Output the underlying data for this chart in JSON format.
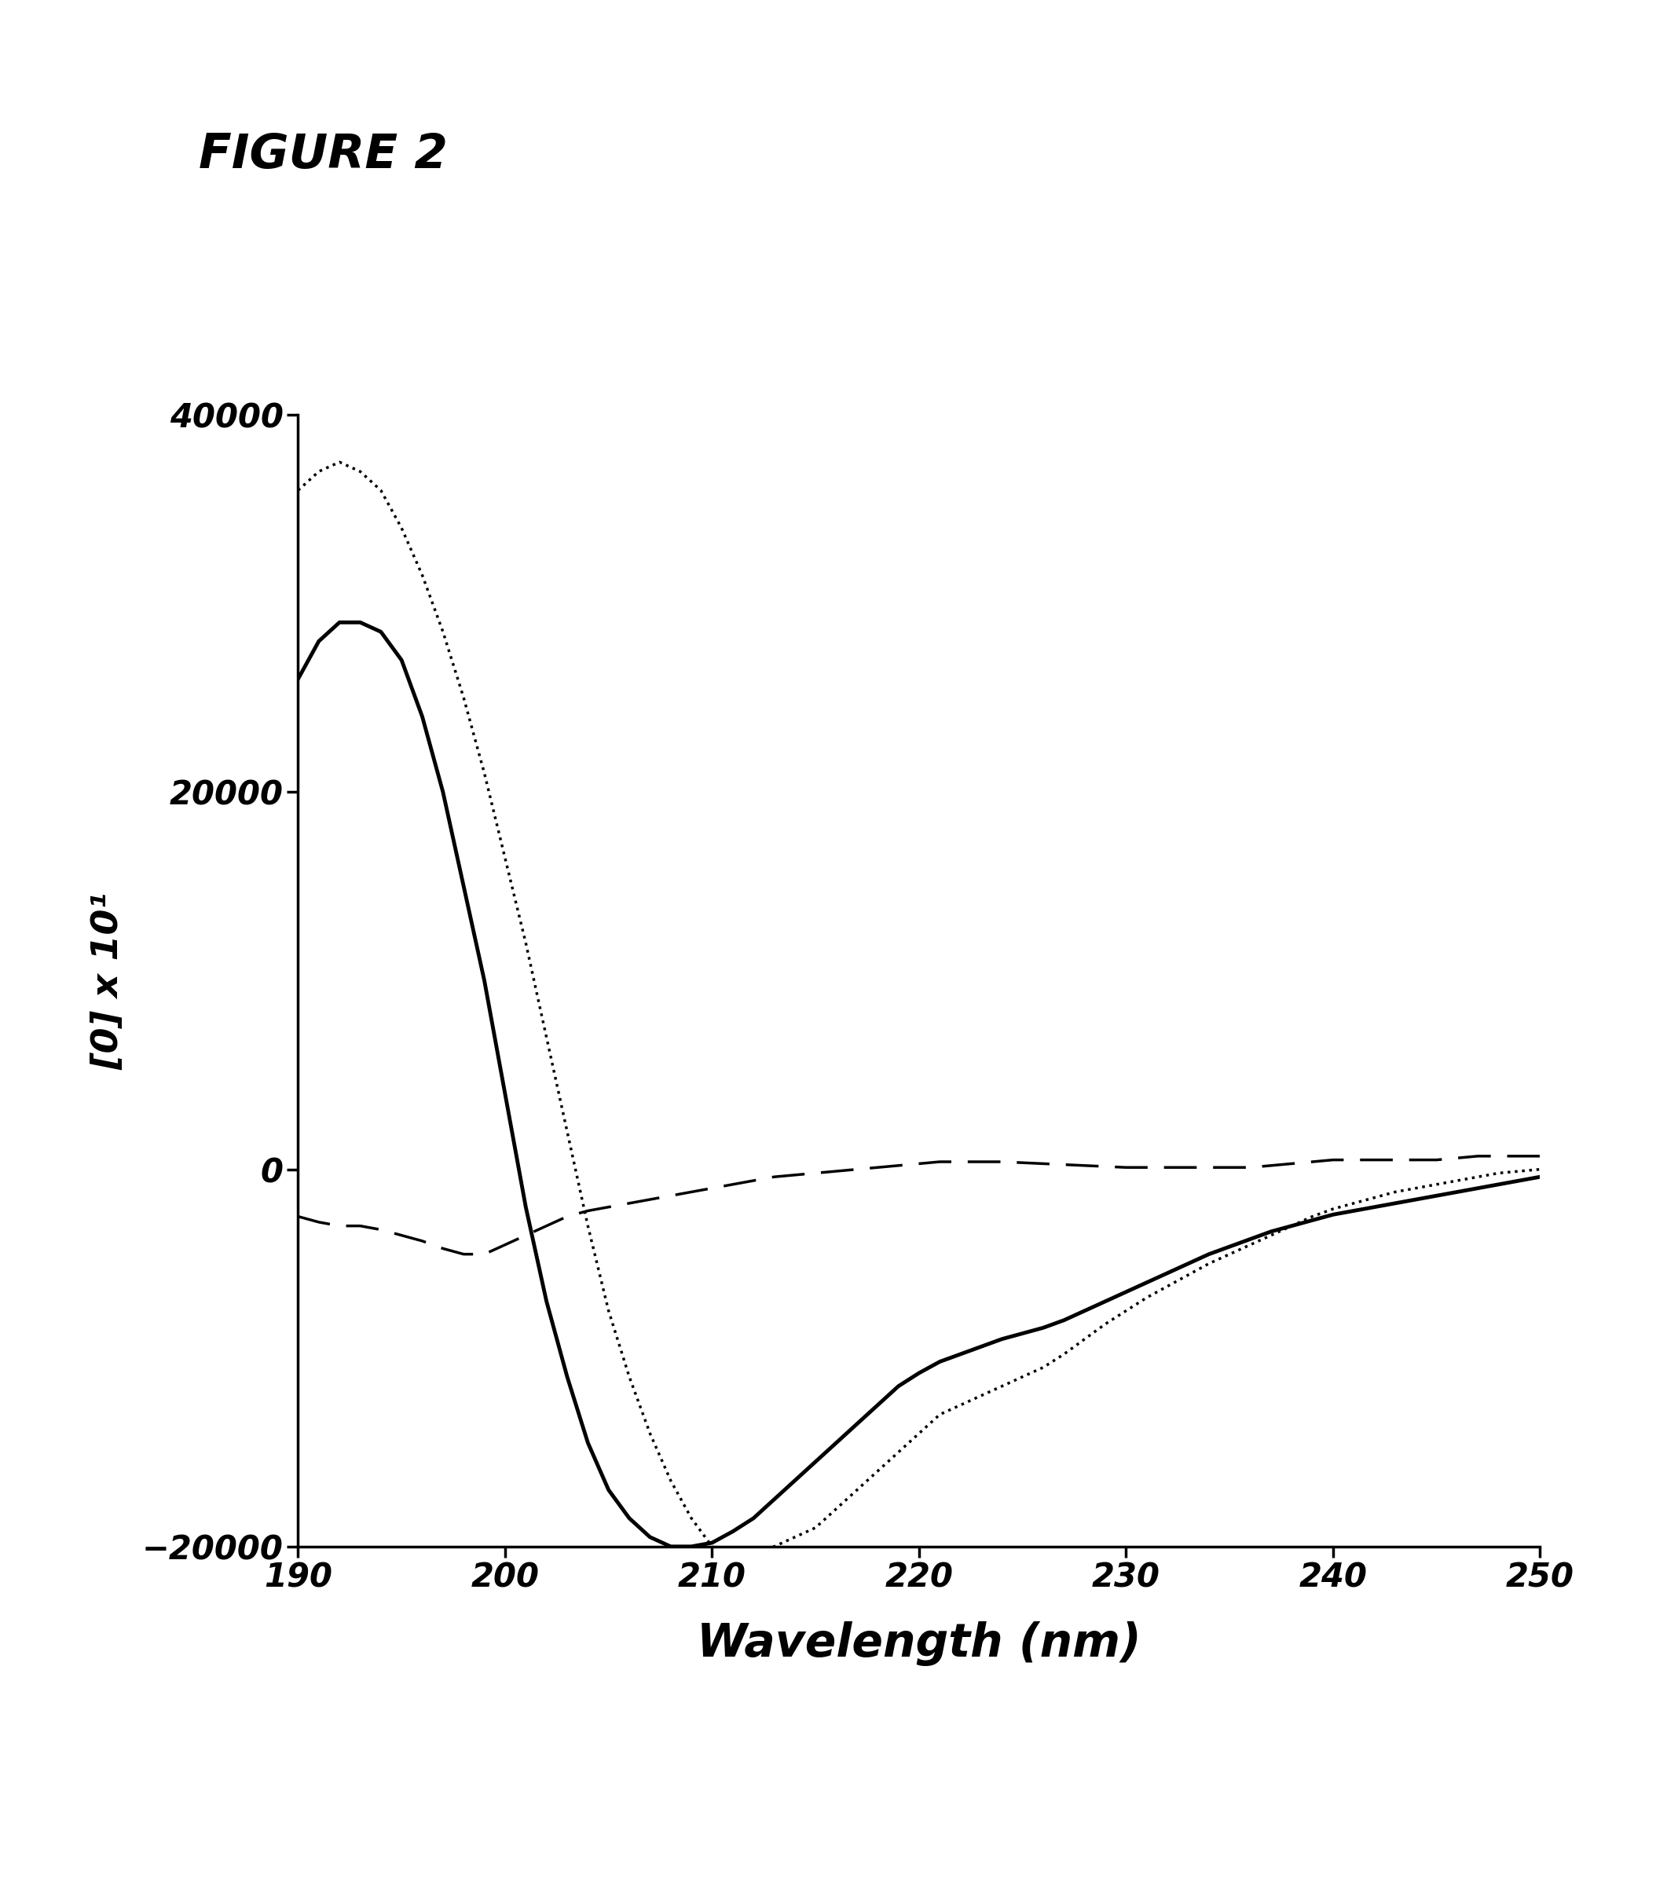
{
  "title": "FIGURE 2",
  "xlabel": "Wavelength (nm)",
  "ylabel": "[0] x 10¹",
  "xlim": [
    190,
    250
  ],
  "ylim": [
    -20000,
    40000
  ],
  "yticks": [
    -20000,
    0,
    20000,
    40000
  ],
  "xticks": [
    190,
    200,
    210,
    220,
    230,
    240,
    250
  ],
  "background_color": "#ffffff",
  "curve1_x": [
    190,
    191,
    192,
    193,
    194,
    195,
    196,
    197,
    198,
    199,
    200,
    201,
    202,
    203,
    204,
    205,
    206,
    207,
    208,
    209,
    210,
    211,
    212,
    213,
    214,
    215,
    216,
    217,
    218,
    219,
    220,
    221,
    222,
    223,
    224,
    225,
    226,
    227,
    228,
    229,
    230,
    231,
    232,
    233,
    234,
    235,
    236,
    237,
    238,
    239,
    240,
    241,
    242,
    243,
    244,
    245,
    246,
    247,
    248,
    249,
    250
  ],
  "curve1_y": [
    26000,
    28000,
    29000,
    29000,
    28500,
    27000,
    24000,
    20000,
    15000,
    10000,
    4000,
    -2000,
    -7000,
    -11000,
    -14500,
    -17000,
    -18500,
    -19500,
    -20000,
    -20000,
    -19800,
    -19200,
    -18500,
    -17500,
    -16500,
    -15500,
    -14500,
    -13500,
    -12500,
    -11500,
    -10800,
    -10200,
    -9800,
    -9400,
    -9000,
    -8700,
    -8400,
    -8000,
    -7500,
    -7000,
    -6500,
    -6000,
    -5500,
    -5000,
    -4500,
    -4100,
    -3700,
    -3300,
    -3000,
    -2700,
    -2400,
    -2200,
    -2000,
    -1800,
    -1600,
    -1400,
    -1200,
    -1000,
    -800,
    -600,
    -400
  ],
  "curve2_x": [
    190,
    191,
    192,
    193,
    194,
    195,
    196,
    197,
    198,
    199,
    200,
    201,
    202,
    203,
    204,
    205,
    206,
    207,
    208,
    209,
    210,
    211,
    212,
    213,
    214,
    215,
    216,
    217,
    218,
    219,
    220,
    221,
    222,
    223,
    224,
    225,
    226,
    227,
    228,
    229,
    230,
    231,
    232,
    233,
    234,
    235,
    236,
    237,
    238,
    239,
    240,
    241,
    242,
    243,
    244,
    245,
    246,
    247,
    248,
    249,
    250
  ],
  "curve2_y": [
    36000,
    37000,
    37500,
    37000,
    36000,
    34000,
    31500,
    28500,
    25000,
    21000,
    16500,
    12000,
    7000,
    2000,
    -3000,
    -7500,
    -11000,
    -14000,
    -16500,
    -18500,
    -20000,
    -20500,
    -20500,
    -20000,
    -19500,
    -19000,
    -18000,
    -17000,
    -16000,
    -15000,
    -14000,
    -13000,
    -12500,
    -12000,
    -11500,
    -11000,
    -10500,
    -9800,
    -9000,
    -8200,
    -7500,
    -6800,
    -6200,
    -5600,
    -5000,
    -4500,
    -4000,
    -3500,
    -3000,
    -2500,
    -2100,
    -1800,
    -1500,
    -1200,
    -1000,
    -800,
    -600,
    -400,
    -200,
    -100,
    0
  ],
  "curve3_x": [
    190,
    191,
    192,
    193,
    194,
    195,
    196,
    197,
    198,
    199,
    200,
    201,
    202,
    203,
    204,
    205,
    206,
    207,
    208,
    209,
    210,
    211,
    212,
    213,
    214,
    215,
    216,
    217,
    218,
    219,
    220,
    221,
    222,
    223,
    224,
    225,
    226,
    227,
    228,
    229,
    230,
    231,
    232,
    233,
    234,
    235,
    236,
    237,
    238,
    239,
    240,
    241,
    242,
    243,
    244,
    245,
    246,
    247,
    248,
    249,
    250
  ],
  "curve3_y": [
    -2500,
    -2800,
    -3000,
    -3000,
    -3200,
    -3500,
    -3800,
    -4200,
    -4500,
    -4500,
    -4000,
    -3500,
    -3000,
    -2500,
    -2200,
    -2000,
    -1800,
    -1600,
    -1400,
    -1200,
    -1000,
    -800,
    -600,
    -400,
    -300,
    -200,
    -100,
    0,
    100,
    200,
    300,
    400,
    400,
    400,
    400,
    350,
    300,
    250,
    200,
    150,
    100,
    100,
    100,
    100,
    100,
    100,
    100,
    200,
    300,
    400,
    500,
    500,
    500,
    500,
    500,
    500,
    600,
    700,
    700,
    700,
    700
  ]
}
